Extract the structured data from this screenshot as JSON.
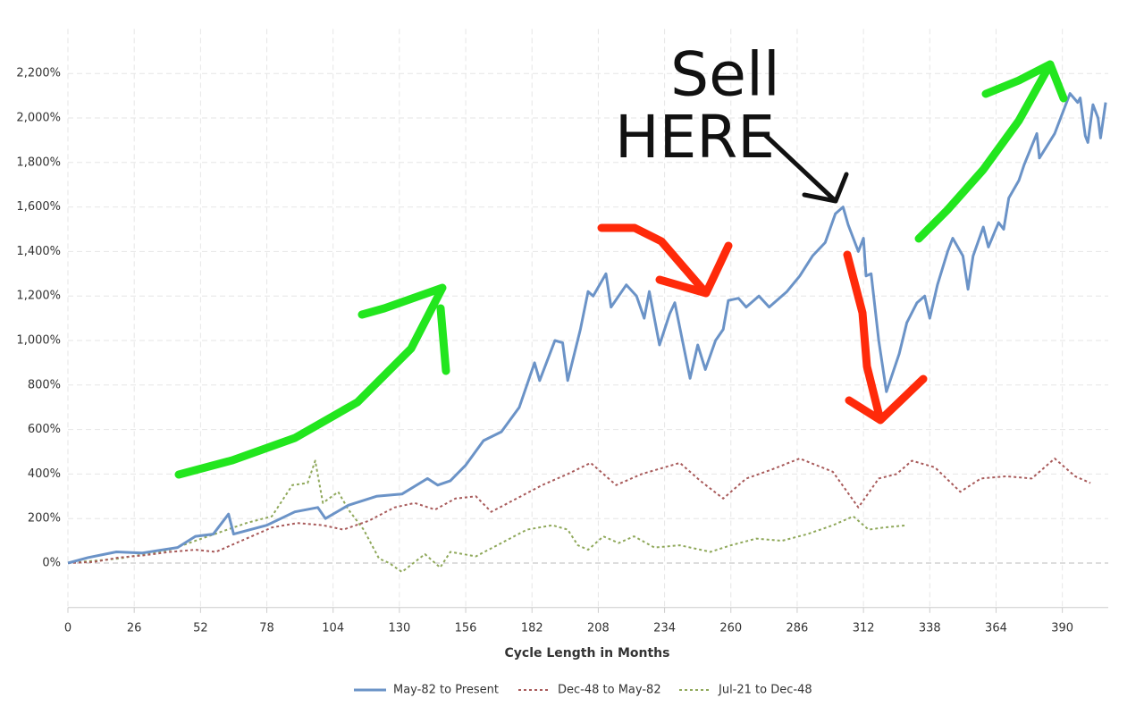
{
  "chart_data": {
    "type": "line",
    "xlabel": "Cycle Length in Months",
    "xlim": [
      0,
      408
    ],
    "xticks": [
      0,
      26,
      52,
      78,
      104,
      130,
      156,
      182,
      208,
      234,
      260,
      286,
      312,
      338,
      364,
      390
    ],
    "ylim": [
      -200,
      2400
    ],
    "yticks": [
      {
        "value": 0,
        "label": "0%"
      },
      {
        "value": 200,
        "label": "200%"
      },
      {
        "value": 400,
        "label": "400%"
      },
      {
        "value": 600,
        "label": "600%"
      },
      {
        "value": 800,
        "label": "800%"
      },
      {
        "value": 1000,
        "label": "1,000%"
      },
      {
        "value": 1200,
        "label": "1,200%"
      },
      {
        "value": 1400,
        "label": "1,400%"
      },
      {
        "value": 1600,
        "label": "1,600%"
      },
      {
        "value": 1800,
        "label": "1,800%"
      },
      {
        "value": 2000,
        "label": "2,000%"
      },
      {
        "value": 2200,
        "label": "2,200%"
      }
    ],
    "grid": true,
    "legend": "bottom",
    "annotations": [
      "Sell",
      "HERE"
    ],
    "series": [
      {
        "name": "May-82 to Present",
        "color": "#6b93c7",
        "dash": "solid",
        "x": [
          0,
          8,
          19,
          29,
          43,
          50,
          57,
          63,
          65,
          78,
          89,
          98,
          101,
          110,
          121,
          131,
          141,
          145,
          150,
          156,
          163,
          170,
          177,
          183,
          185,
          191,
          194,
          196,
          201,
          204,
          206,
          211,
          213,
          219,
          223,
          226,
          228,
          232,
          236,
          238,
          244,
          247,
          250,
          254,
          257,
          259,
          263,
          266,
          271,
          275,
          282,
          287,
          292,
          297,
          301,
          304,
          306,
          310,
          312,
          313,
          315,
          318,
          321,
          326,
          329,
          333,
          336,
          338,
          341,
          345,
          347,
          351,
          353,
          355,
          359,
          361,
          365,
          367,
          369,
          373,
          375,
          380,
          381,
          387,
          391,
          393,
          396,
          397,
          399,
          400,
          402,
          404,
          405,
          407
        ],
        "values": [
          0,
          25,
          50,
          45,
          70,
          120,
          130,
          220,
          130,
          170,
          230,
          250,
          200,
          260,
          300,
          310,
          380,
          350,
          370,
          440,
          550,
          590,
          700,
          900,
          820,
          1000,
          990,
          820,
          1050,
          1220,
          1200,
          1300,
          1150,
          1250,
          1200,
          1100,
          1220,
          980,
          1120,
          1170,
          830,
          980,
          870,
          1000,
          1050,
          1180,
          1190,
          1150,
          1200,
          1150,
          1220,
          1290,
          1380,
          1440,
          1570,
          1600,
          1520,
          1400,
          1460,
          1290,
          1300,
          1000,
          770,
          940,
          1080,
          1170,
          1200,
          1100,
          1250,
          1400,
          1460,
          1380,
          1230,
          1380,
          1510,
          1420,
          1530,
          1500,
          1640,
          1720,
          1790,
          1930,
          1820,
          1930,
          2050,
          2110,
          2070,
          2090,
          1920,
          1890,
          2060,
          2000,
          1910,
          2070
        ]
      },
      {
        "name": "Dec-48 to May-82",
        "color": "#a85a5a",
        "dash": "dotted",
        "x": [
          0,
          10,
          20,
          30,
          40,
          50,
          58,
          70,
          80,
          90,
          100,
          108,
          118,
          128,
          136,
          144,
          152,
          160,
          166,
          176,
          186,
          196,
          205,
          215,
          225,
          240,
          248,
          257,
          266,
          276,
          287,
          300,
          310,
          318,
          325,
          331,
          340,
          350,
          358,
          368,
          378,
          387,
          395,
          401
        ],
        "values": [
          0,
          5,
          25,
          35,
          50,
          60,
          50,
          110,
          160,
          180,
          170,
          150,
          190,
          250,
          270,
          240,
          290,
          300,
          230,
          290,
          350,
          400,
          450,
          350,
          400,
          450,
          370,
          290,
          380,
          420,
          470,
          410,
          250,
          380,
          400,
          460,
          430,
          320,
          380,
          390,
          380,
          470,
          390,
          360
        ]
      },
      {
        "name": "Jul-21 to Dec-48",
        "color": "#8fa85a",
        "dash": "dotted",
        "x": [
          0,
          20,
          40,
          50,
          60,
          70,
          80,
          88,
          94,
          97,
          100,
          106,
          110,
          116,
          122,
          126,
          131,
          140,
          146,
          150,
          160,
          170,
          180,
          190,
          196,
          200,
          204,
          210,
          216,
          222,
          230,
          240,
          252,
          260,
          270,
          280,
          290,
          300,
          308,
          314,
          320,
          329
        ],
        "values": [
          0,
          20,
          60,
          100,
          140,
          180,
          210,
          350,
          360,
          460,
          270,
          320,
          240,
          150,
          20,
          0,
          -40,
          40,
          -20,
          50,
          30,
          90,
          150,
          170,
          150,
          80,
          60,
          120,
          90,
          120,
          70,
          80,
          50,
          80,
          110,
          100,
          130,
          170,
          210,
          150,
          160,
          170
        ]
      }
    ]
  }
}
